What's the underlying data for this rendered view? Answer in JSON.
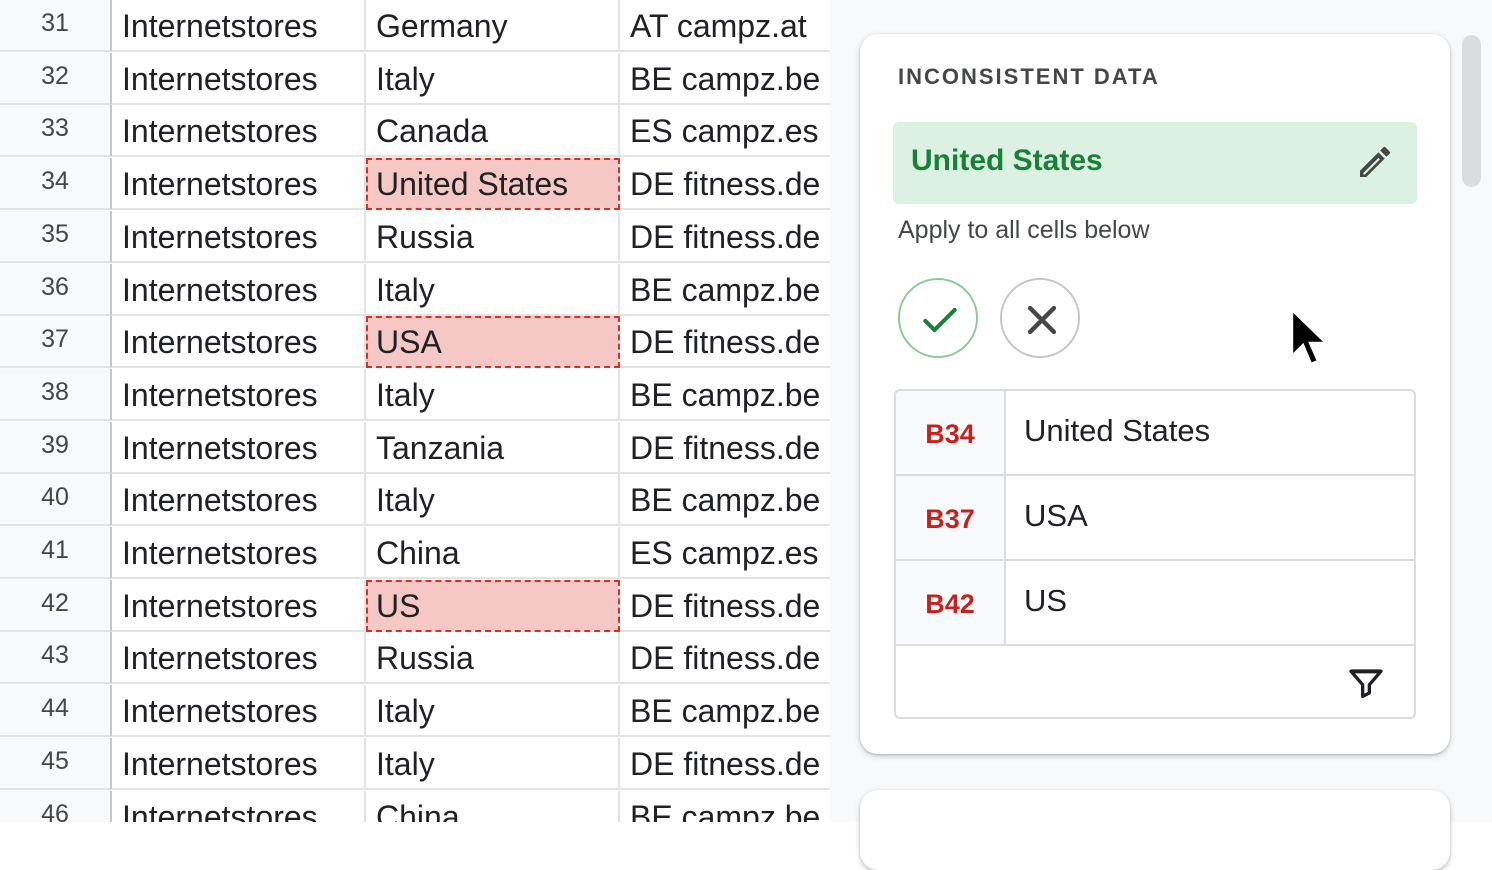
{
  "spreadsheet": {
    "rows": [
      {
        "num": "31",
        "store": "Internetstores",
        "country": "Germany",
        "site": "AT campz.at",
        "flagged": false
      },
      {
        "num": "32",
        "store": "Internetstores",
        "country": "Italy",
        "site": "BE campz.be",
        "flagged": false
      },
      {
        "num": "33",
        "store": "Internetstores",
        "country": "Canada",
        "site": "ES campz.es",
        "flagged": false
      },
      {
        "num": "34",
        "store": "Internetstores",
        "country": "United States",
        "site": "DE fitness.de",
        "flagged": true
      },
      {
        "num": "35",
        "store": "Internetstores",
        "country": "Russia",
        "site": "DE fitness.de",
        "flagged": false
      },
      {
        "num": "36",
        "store": "Internetstores",
        "country": "Italy",
        "site": "BE campz.be",
        "flagged": false
      },
      {
        "num": "37",
        "store": "Internetstores",
        "country": "USA",
        "site": "DE fitness.de",
        "flagged": true
      },
      {
        "num": "38",
        "store": "Internetstores",
        "country": "Italy",
        "site": "BE campz.be",
        "flagged": false
      },
      {
        "num": "39",
        "store": "Internetstores",
        "country": "Tanzania",
        "site": "DE   fitness.de",
        "flagged": false
      },
      {
        "num": "40",
        "store": "Internetstores",
        "country": "Italy",
        "site": "BE campz.be",
        "flagged": false
      },
      {
        "num": "41",
        "store": "Internetstores",
        "country": "China",
        "site": "ES campz.es",
        "flagged": false
      },
      {
        "num": "42",
        "store": "Internetstores",
        "country": "US",
        "site": "DE fitness.de",
        "flagged": true
      },
      {
        "num": "43",
        "store": "Internetstores",
        "country": "Russia",
        "site": "DE fitness.de",
        "flagged": false
      },
      {
        "num": "44",
        "store": "Internetstores",
        "country": "Italy",
        "site": "BE campz.be",
        "flagged": false
      },
      {
        "num": "45",
        "store": "Internetstores",
        "country": "Italy",
        "site": "DE fitness.de",
        "flagged": false
      },
      {
        "num": "46",
        "store": "Internetstores",
        "country": "China",
        "site": "BE campz.be",
        "flagged": false
      }
    ]
  },
  "panel": {
    "title": "INCONSISTENT DATA",
    "suggestion": "United States",
    "apply_text": "Apply to all cells below",
    "accept_icon": "check-icon",
    "reject_icon": "close-icon",
    "edit_icon": "pencil-icon",
    "filter_icon": "filter-icon",
    "cells": [
      {
        "ref": "B34",
        "value": "United States"
      },
      {
        "ref": "B37",
        "value": "USA"
      },
      {
        "ref": "B42",
        "value": "US"
      }
    ]
  },
  "colors": {
    "flag_fill": "#f6c8c5",
    "flag_border": "#d93025",
    "suggestion_bg": "#dcf1e2",
    "suggestion_text": "#188038",
    "ref_text": "#c5221f"
  }
}
